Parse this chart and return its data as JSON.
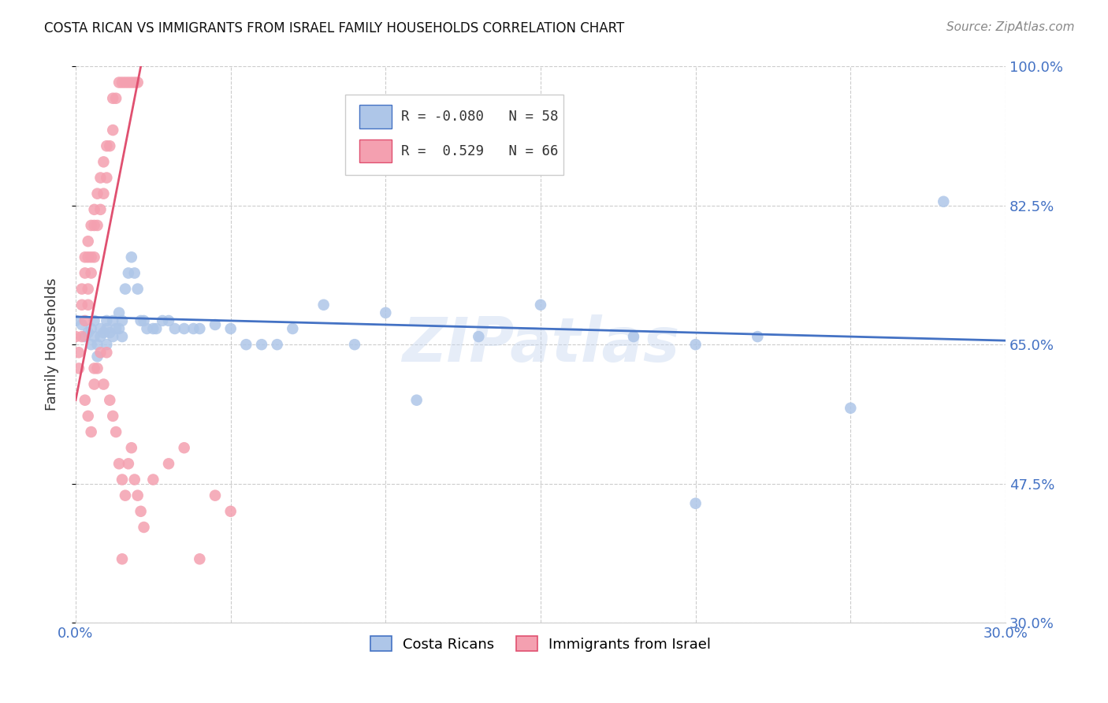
{
  "title": "COSTA RICAN VS IMMIGRANTS FROM ISRAEL FAMILY HOUSEHOLDS CORRELATION CHART",
  "source": "Source: ZipAtlas.com",
  "ylabel": "Family Households",
  "y_tick_labels": [
    "30.0%",
    "47.5%",
    "65.0%",
    "82.5%",
    "100.0%"
  ],
  "x_min": 0.0,
  "x_max": 0.3,
  "y_min": 0.3,
  "y_max": 1.0,
  "legend_entries": [
    "Costa Ricans",
    "Immigrants from Israel"
  ],
  "blue_R": -0.08,
  "blue_N": 58,
  "pink_R": 0.529,
  "pink_N": 66,
  "blue_color": "#aec6e8",
  "pink_color": "#f4a0b0",
  "blue_line_color": "#4472c4",
  "pink_line_color": "#e05070",
  "watermark": "ZIPatlas",
  "blue_points": [
    [
      0.0,
      0.68
    ],
    [
      0.002,
      0.675
    ],
    [
      0.003,
      0.66
    ],
    [
      0.004,
      0.665
    ],
    [
      0.005,
      0.67
    ],
    [
      0.005,
      0.65
    ],
    [
      0.006,
      0.68
    ],
    [
      0.006,
      0.66
    ],
    [
      0.007,
      0.65
    ],
    [
      0.007,
      0.635
    ],
    [
      0.008,
      0.67
    ],
    [
      0.008,
      0.66
    ],
    [
      0.009,
      0.665
    ],
    [
      0.01,
      0.67
    ],
    [
      0.01,
      0.65
    ],
    [
      0.01,
      0.68
    ],
    [
      0.011,
      0.665
    ],
    [
      0.012,
      0.68
    ],
    [
      0.012,
      0.66
    ],
    [
      0.013,
      0.67
    ],
    [
      0.014,
      0.69
    ],
    [
      0.014,
      0.67
    ],
    [
      0.015,
      0.68
    ],
    [
      0.015,
      0.66
    ],
    [
      0.016,
      0.72
    ],
    [
      0.017,
      0.74
    ],
    [
      0.018,
      0.76
    ],
    [
      0.019,
      0.74
    ],
    [
      0.02,
      0.72
    ],
    [
      0.021,
      0.68
    ],
    [
      0.022,
      0.68
    ],
    [
      0.023,
      0.67
    ],
    [
      0.025,
      0.67
    ],
    [
      0.026,
      0.67
    ],
    [
      0.028,
      0.68
    ],
    [
      0.03,
      0.68
    ],
    [
      0.032,
      0.67
    ],
    [
      0.035,
      0.67
    ],
    [
      0.038,
      0.67
    ],
    [
      0.04,
      0.67
    ],
    [
      0.045,
      0.675
    ],
    [
      0.05,
      0.67
    ],
    [
      0.055,
      0.65
    ],
    [
      0.06,
      0.65
    ],
    [
      0.065,
      0.65
    ],
    [
      0.07,
      0.67
    ],
    [
      0.08,
      0.7
    ],
    [
      0.09,
      0.65
    ],
    [
      0.1,
      0.69
    ],
    [
      0.11,
      0.58
    ],
    [
      0.13,
      0.66
    ],
    [
      0.15,
      0.7
    ],
    [
      0.18,
      0.66
    ],
    [
      0.2,
      0.65
    ],
    [
      0.22,
      0.66
    ],
    [
      0.25,
      0.57
    ],
    [
      0.28,
      0.83
    ],
    [
      0.2,
      0.45
    ]
  ],
  "pink_points": [
    [
      0.0,
      0.66
    ],
    [
      0.001,
      0.64
    ],
    [
      0.001,
      0.62
    ],
    [
      0.002,
      0.66
    ],
    [
      0.002,
      0.7
    ],
    [
      0.002,
      0.72
    ],
    [
      0.003,
      0.68
    ],
    [
      0.003,
      0.74
    ],
    [
      0.003,
      0.76
    ],
    [
      0.004,
      0.7
    ],
    [
      0.004,
      0.72
    ],
    [
      0.004,
      0.76
    ],
    [
      0.004,
      0.78
    ],
    [
      0.005,
      0.74
    ],
    [
      0.005,
      0.76
    ],
    [
      0.005,
      0.8
    ],
    [
      0.006,
      0.76
    ],
    [
      0.006,
      0.8
    ],
    [
      0.006,
      0.82
    ],
    [
      0.007,
      0.8
    ],
    [
      0.007,
      0.84
    ],
    [
      0.008,
      0.82
    ],
    [
      0.008,
      0.86
    ],
    [
      0.009,
      0.84
    ],
    [
      0.009,
      0.88
    ],
    [
      0.01,
      0.86
    ],
    [
      0.01,
      0.9
    ],
    [
      0.011,
      0.9
    ],
    [
      0.012,
      0.92
    ],
    [
      0.012,
      0.96
    ],
    [
      0.013,
      0.96
    ],
    [
      0.014,
      0.98
    ],
    [
      0.015,
      0.98
    ],
    [
      0.016,
      0.98
    ],
    [
      0.017,
      0.98
    ],
    [
      0.018,
      0.98
    ],
    [
      0.019,
      0.98
    ],
    [
      0.02,
      0.98
    ],
    [
      0.003,
      0.58
    ],
    [
      0.004,
      0.56
    ],
    [
      0.005,
      0.54
    ],
    [
      0.006,
      0.62
    ],
    [
      0.006,
      0.6
    ],
    [
      0.007,
      0.62
    ],
    [
      0.008,
      0.64
    ],
    [
      0.009,
      0.6
    ],
    [
      0.01,
      0.64
    ],
    [
      0.011,
      0.58
    ],
    [
      0.012,
      0.56
    ],
    [
      0.013,
      0.54
    ],
    [
      0.014,
      0.5
    ],
    [
      0.015,
      0.48
    ],
    [
      0.016,
      0.46
    ],
    [
      0.017,
      0.5
    ],
    [
      0.018,
      0.52
    ],
    [
      0.019,
      0.48
    ],
    [
      0.02,
      0.46
    ],
    [
      0.021,
      0.44
    ],
    [
      0.022,
      0.42
    ],
    [
      0.025,
      0.48
    ],
    [
      0.03,
      0.5
    ],
    [
      0.035,
      0.52
    ],
    [
      0.04,
      0.38
    ],
    [
      0.045,
      0.46
    ],
    [
      0.05,
      0.44
    ],
    [
      0.015,
      0.38
    ]
  ],
  "blue_line_x": [
    0.0,
    0.3
  ],
  "blue_line_y": [
    0.685,
    0.655
  ],
  "pink_line_x": [
    0.0,
    0.021
  ],
  "pink_line_y": [
    0.58,
    1.0
  ]
}
